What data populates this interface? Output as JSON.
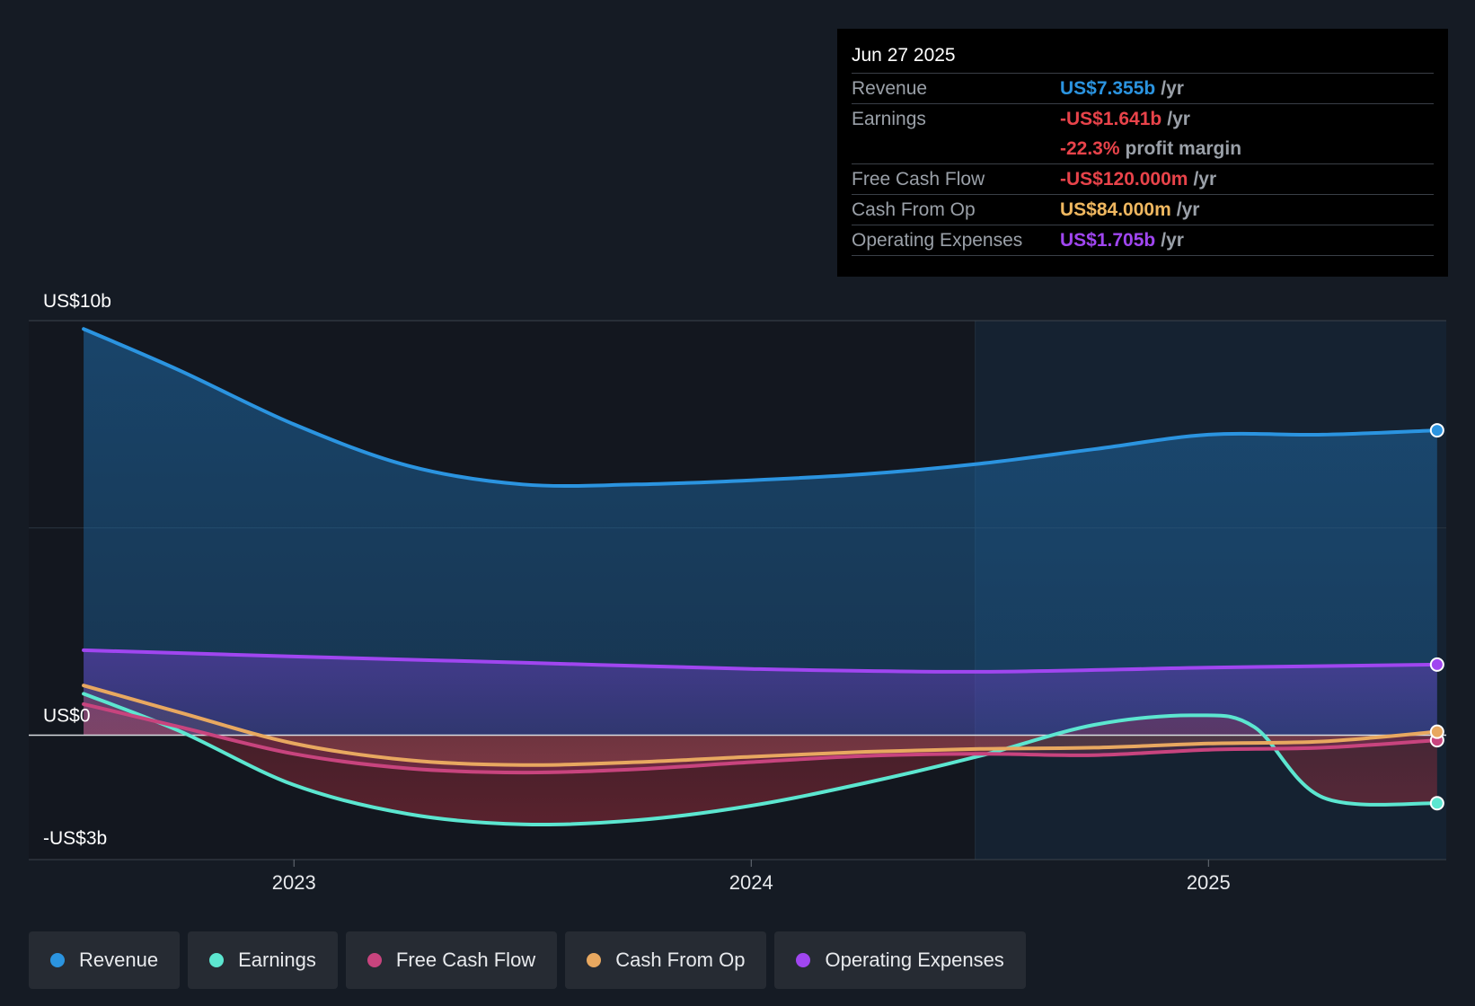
{
  "tooltip": {
    "date": "Jun 27 2025",
    "rows": [
      {
        "label": "Revenue",
        "value": "US$7.355b",
        "unit": "/yr",
        "color": "#2b94e0"
      },
      {
        "label": "Earnings",
        "value": "-US$1.641b",
        "unit": "/yr",
        "color": "#e8434a"
      },
      {
        "label": "",
        "value": "-22.3%",
        "unit": "profit margin",
        "color": "#e8434a"
      },
      {
        "label": "Free Cash Flow",
        "value": "-US$120.000m",
        "unit": "/yr",
        "color": "#e8434a"
      },
      {
        "label": "Cash From Op",
        "value": "US$84.000m",
        "unit": "/yr",
        "color": "#f0b860"
      },
      {
        "label": "Operating Expenses",
        "value": "US$1.705b",
        "unit": "/yr",
        "color": "#a046f0"
      }
    ]
  },
  "legend": [
    {
      "label": "Revenue",
      "color": "#2b94e0"
    },
    {
      "label": "Earnings",
      "color": "#5ce6d0"
    },
    {
      "label": "Free Cash Flow",
      "color": "#c8447e"
    },
    {
      "label": "Cash From Op",
      "color": "#e8a860"
    },
    {
      "label": "Operating Expenses",
      "color": "#a046f0"
    }
  ],
  "chart_data": {
    "type": "area",
    "y_axis_labels": [
      "US$10b",
      "US$0",
      "-US$3b"
    ],
    "x_tick_labels": [
      "2023",
      "2024",
      "2025"
    ],
    "ylim": [
      -3,
      10
    ],
    "xlim": [
      2022.42,
      2025.52
    ],
    "forecast_start": 2024.49,
    "series": [
      {
        "name": "Revenue",
        "color": "#2b94e0",
        "x": [
          2022.54,
          2022.75,
          2023.0,
          2023.25,
          2023.5,
          2023.75,
          2024.0,
          2024.25,
          2024.5,
          2024.75,
          2025.0,
          2025.25,
          2025.5
        ],
        "values": [
          9.8,
          8.8,
          7.5,
          6.5,
          6.05,
          6.05,
          6.15,
          6.3,
          6.55,
          6.9,
          7.25,
          7.25,
          7.355
        ]
      },
      {
        "name": "Operating Expenses",
        "color": "#a046f0",
        "x": [
          2022.54,
          2023.0,
          2023.5,
          2024.0,
          2024.5,
          2025.0,
          2025.5
        ],
        "values": [
          2.05,
          1.9,
          1.75,
          1.6,
          1.53,
          1.63,
          1.705
        ]
      },
      {
        "name": "Earnings",
        "color": "#5ce6d0",
        "x": [
          2022.54,
          2022.75,
          2023.0,
          2023.25,
          2023.5,
          2023.75,
          2024.0,
          2024.25,
          2024.5,
          2024.75,
          2024.97,
          2025.1,
          2025.25,
          2025.5
        ],
        "values": [
          1.0,
          0.1,
          -1.2,
          -1.9,
          -2.15,
          -2.05,
          -1.7,
          -1.15,
          -0.5,
          0.25,
          0.48,
          0.2,
          -1.5,
          -1.641
        ]
      },
      {
        "name": "Free Cash Flow",
        "color": "#c8447e",
        "x": [
          2022.54,
          2022.75,
          2023.0,
          2023.25,
          2023.5,
          2023.75,
          2024.0,
          2024.25,
          2024.5,
          2024.75,
          2025.0,
          2025.25,
          2025.5
        ],
        "values": [
          0.75,
          0.2,
          -0.45,
          -0.8,
          -0.9,
          -0.82,
          -0.65,
          -0.5,
          -0.45,
          -0.48,
          -0.35,
          -0.3,
          -0.12
        ]
      },
      {
        "name": "Cash From Op",
        "color": "#e8a860",
        "x": [
          2022.54,
          2022.75,
          2023.0,
          2023.25,
          2023.5,
          2023.75,
          2024.0,
          2024.25,
          2024.5,
          2024.75,
          2025.0,
          2025.25,
          2025.5
        ],
        "values": [
          1.2,
          0.55,
          -0.2,
          -0.6,
          -0.72,
          -0.65,
          -0.52,
          -0.4,
          -0.33,
          -0.3,
          -0.2,
          -0.15,
          0.084
        ]
      }
    ]
  }
}
